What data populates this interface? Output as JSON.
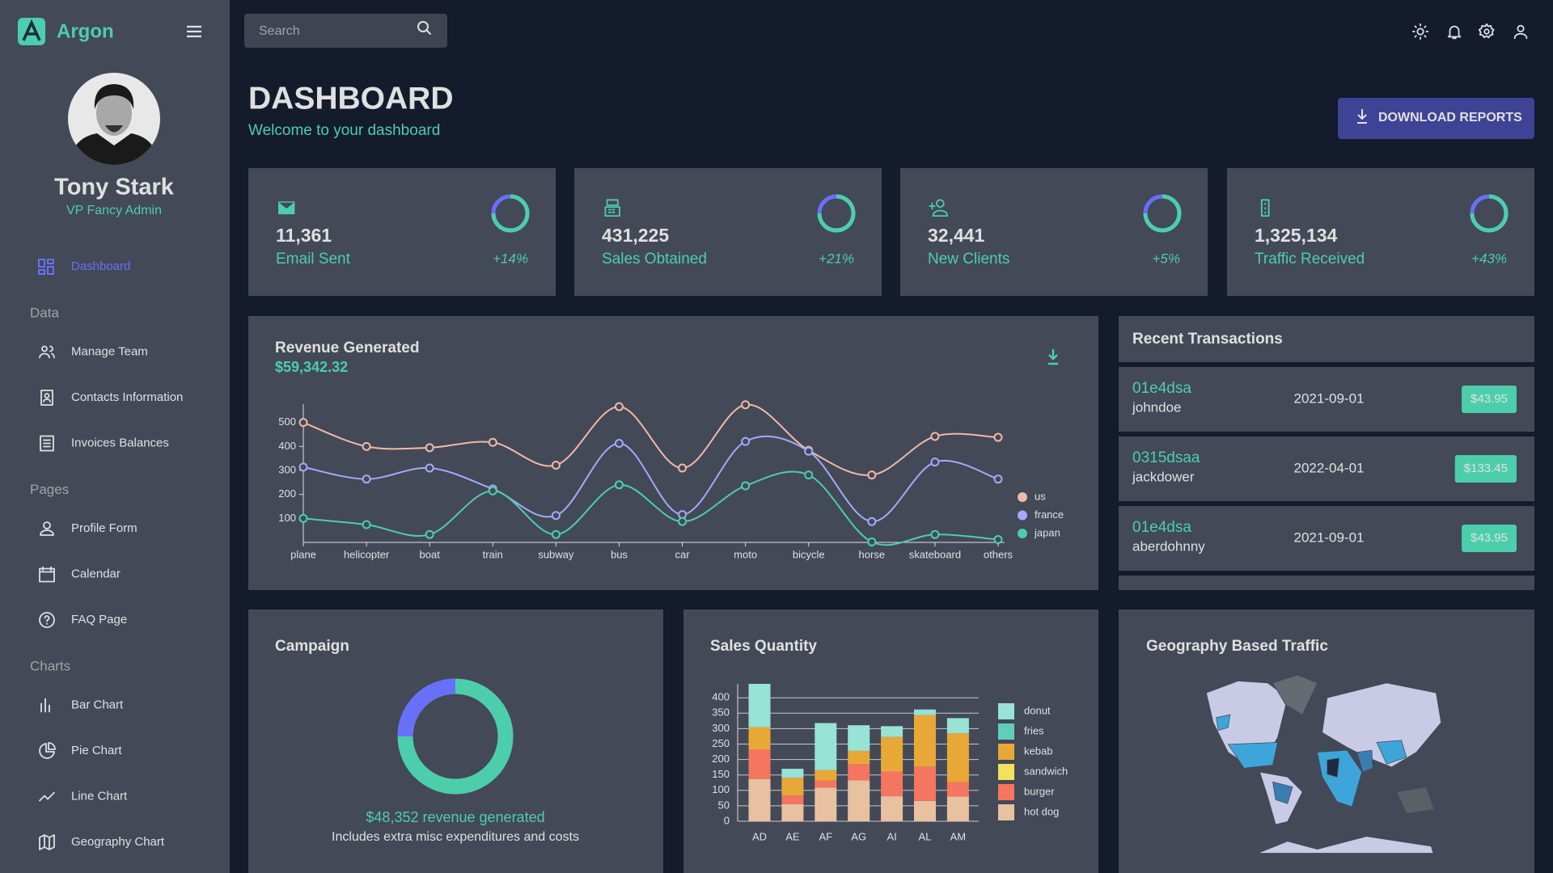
{
  "sidebar": {
    "brand": "Argon",
    "user_name": "Tony Stark",
    "user_role": "VP Fancy Admin",
    "active_item": "Dashboard",
    "groups": [
      {
        "title": "Data",
        "items": [
          "Manage Team",
          "Contacts Information",
          "Invoices Balances"
        ]
      },
      {
        "title": "Pages",
        "items": [
          "Profile Form",
          "Calendar",
          "FAQ Page"
        ]
      },
      {
        "title": "Charts",
        "items": [
          "Bar Chart",
          "Pie Chart",
          "Line Chart",
          "Geography Chart"
        ]
      }
    ]
  },
  "topbar": {
    "search_placeholder": "Search"
  },
  "header": {
    "title": "DASHBOARD",
    "subtitle": "Welcome to your dashboard",
    "button": "DOWNLOAD REPORTS"
  },
  "stats": [
    {
      "value": "11,361",
      "label": "Email Sent",
      "change": "+14%"
    },
    {
      "value": "431,225",
      "label": "Sales Obtained",
      "change": "+21%"
    },
    {
      "value": "32,441",
      "label": "New Clients",
      "change": "+5%"
    },
    {
      "value": "1,325,134",
      "label": "Traffic Received",
      "change": "+43%"
    }
  ],
  "transactions": {
    "title": "Recent Transactions",
    "rows": [
      {
        "id": "01e4dsa",
        "user": "johndoe",
        "date": "2021-09-01",
        "cost": "$43.95"
      },
      {
        "id": "0315dsaa",
        "user": "jackdower",
        "date": "2022-04-01",
        "cost": "$133.45"
      },
      {
        "id": "01e4dsa",
        "user": "aberdohnny",
        "date": "2021-09-01",
        "cost": "$43.95"
      }
    ]
  },
  "campaign": {
    "title": "Campaign",
    "revenue": "$48,352 revenue generated",
    "note": "Includes extra misc expenditures and costs"
  },
  "geography": {
    "title": "Geography Based Traffic"
  },
  "chart_data": [
    {
      "type": "line",
      "title": "Revenue Generated",
      "subtitle": "$59,342.32",
      "categories": [
        "plane",
        "helicopter",
        "boat",
        "train",
        "subway",
        "bus",
        "car",
        "moto",
        "bicycle",
        "horse",
        "skateboard",
        "others"
      ],
      "series": [
        {
          "name": "us",
          "color": "#f1b9a8",
          "values": [
            500,
            400,
            395,
            417,
            322,
            566,
            310,
            574,
            384,
            281,
            442,
            438
          ]
        },
        {
          "name": "france",
          "color": "#a4a9fc",
          "values": [
            314,
            264,
            310,
            223,
            112,
            413,
            116,
            421,
            380,
            87,
            335,
            264
          ]
        },
        {
          "name": "japan",
          "color": "#4cceac",
          "values": [
            100,
            74,
            33,
            215,
            33,
            240,
            87,
            236,
            281,
            2,
            33,
            12
          ]
        }
      ],
      "ylim": [
        0,
        600
      ],
      "yticks": [
        100,
        200,
        300,
        400,
        500
      ]
    },
    {
      "type": "stacked-bar",
      "title": "Sales Quantity",
      "categories": [
        "AD",
        "AE",
        "AF",
        "AG",
        "AI",
        "AL",
        "AM"
      ],
      "series": [
        {
          "name": "donut",
          "color": "#97e3d5",
          "values": [
            140,
            29,
            152,
            83,
            35,
            18,
            49
          ]
        },
        {
          "name": "fries",
          "color": "#61cdbb",
          "values": [
            null,
            null,
            null,
            null,
            null,
            null,
            null
          ]
        },
        {
          "name": "kebab",
          "color": "#e8a838",
          "values": [
            72,
            58,
            34,
            43,
            112,
            167,
            158
          ]
        },
        {
          "name": "sandwich",
          "color": "#f1e15b",
          "values": [
            null,
            null,
            null,
            null,
            null,
            null,
            null
          ]
        },
        {
          "name": "burger",
          "color": "#f47560",
          "values": [
            96,
            28,
            23,
            52,
            80,
            111,
            47
          ]
        },
        {
          "name": "hot dog",
          "color": "#e8c1a0",
          "values": [
            137,
            55,
            109,
            133,
            81,
            66,
            80
          ]
        }
      ],
      "ylim": [
        0,
        445
      ],
      "yticks": [
        0,
        50,
        100,
        150,
        200,
        250,
        300,
        350,
        400
      ],
      "grid": true
    }
  ]
}
